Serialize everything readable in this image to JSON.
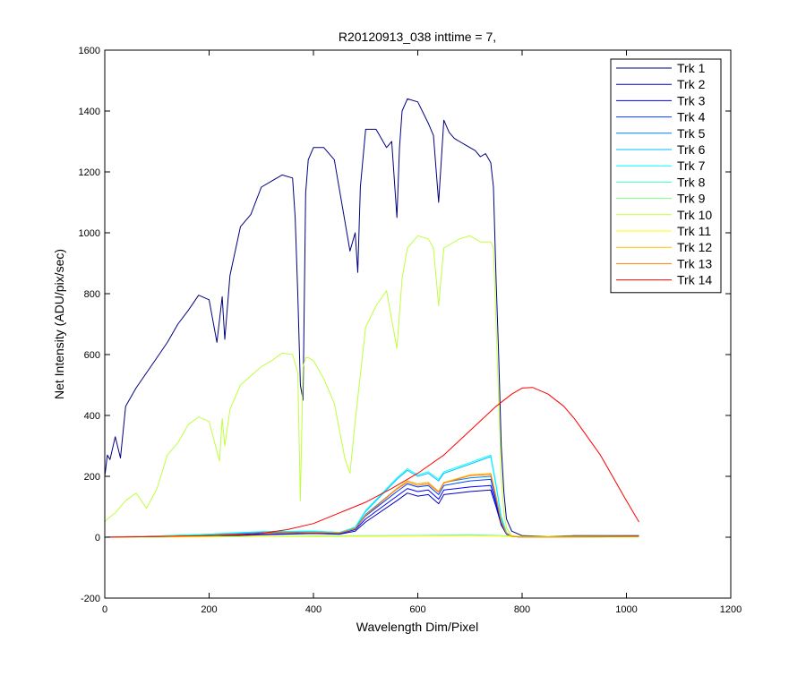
{
  "chart_data": {
    "type": "line",
    "title": "R20120913_038 inttime = 7,",
    "xlabel": "Wavelength Dim/Pixel",
    "ylabel": "Net Intensity (ADU/pix/sec)",
    "xlim": [
      0,
      1200
    ],
    "ylim": [
      -200,
      1600
    ],
    "xticks": [
      0,
      200,
      400,
      600,
      800,
      1000,
      1200
    ],
    "yticks": [
      -200,
      0,
      200,
      400,
      600,
      800,
      1000,
      1200,
      1400,
      1600
    ],
    "grid": false,
    "legend_position": "top-right",
    "series": [
      {
        "name": "Trk 1",
        "color": "#00007f",
        "x": [
          0,
          5,
          10,
          20,
          30,
          40,
          60,
          80,
          100,
          120,
          140,
          160,
          180,
          200,
          215,
          225,
          230,
          240,
          260,
          280,
          300,
          320,
          340,
          360,
          365,
          370,
          375,
          380,
          385,
          390,
          400,
          420,
          440,
          460,
          470,
          480,
          485,
          490,
          500,
          520,
          540,
          550,
          560,
          565,
          570,
          580,
          600,
          620,
          630,
          640,
          650,
          660,
          670,
          680,
          690,
          700,
          710,
          720,
          730,
          740,
          745,
          750,
          755,
          760,
          765,
          770,
          780,
          800,
          850,
          900,
          1000,
          1024
        ],
        "y": [
          200,
          270,
          255,
          330,
          260,
          430,
          490,
          540,
          590,
          640,
          700,
          745,
          795,
          780,
          640,
          790,
          650,
          860,
          1020,
          1060,
          1150,
          1170,
          1190,
          1180,
          1050,
          800,
          500,
          450,
          1130,
          1240,
          1280,
          1280,
          1240,
          1040,
          940,
          1000,
          870,
          1150,
          1340,
          1340,
          1280,
          1300,
          1050,
          1280,
          1400,
          1440,
          1430,
          1360,
          1320,
          1100,
          1370,
          1330,
          1310,
          1300,
          1290,
          1280,
          1270,
          1250,
          1260,
          1230,
          1150,
          850,
          600,
          300,
          150,
          60,
          20,
          5,
          3,
          5,
          5,
          5
        ]
      },
      {
        "name": "Trk 2",
        "color": "#0000bf",
        "x": [
          0,
          100,
          200,
          300,
          400,
          450,
          480,
          500,
          560,
          580,
          600,
          620,
          640,
          650,
          700,
          740,
          750,
          760,
          770,
          780,
          800,
          900,
          1024
        ],
        "y": [
          0,
          1,
          3,
          8,
          12,
          10,
          20,
          50,
          120,
          145,
          135,
          140,
          110,
          140,
          150,
          155,
          100,
          40,
          10,
          3,
          0,
          1,
          2
        ]
      },
      {
        "name": "Trk 3",
        "color": "#0000ff",
        "x": [
          0,
          100,
          200,
          300,
          400,
          450,
          480,
          500,
          560,
          580,
          600,
          620,
          640,
          650,
          700,
          740,
          750,
          760,
          770,
          780,
          800,
          900,
          1024
        ],
        "y": [
          0,
          2,
          5,
          10,
          14,
          12,
          25,
          60,
          135,
          160,
          150,
          155,
          125,
          155,
          165,
          170,
          110,
          45,
          12,
          3,
          0,
          1,
          2
        ]
      },
      {
        "name": "Trk 4",
        "color": "#003fff",
        "x": [
          0,
          100,
          200,
          300,
          400,
          450,
          480,
          500,
          560,
          580,
          600,
          620,
          640,
          650,
          700,
          740,
          750,
          760,
          770,
          780,
          800,
          900,
          1024
        ],
        "y": [
          0,
          2,
          6,
          12,
          16,
          14,
          28,
          70,
          150,
          175,
          165,
          170,
          140,
          170,
          185,
          190,
          120,
          50,
          13,
          3,
          0,
          1,
          2
        ]
      },
      {
        "name": "Trk 5",
        "color": "#007fff",
        "x": [
          0,
          100,
          200,
          300,
          400,
          450,
          480,
          500,
          560,
          580,
          600,
          620,
          640,
          650,
          700,
          740,
          750,
          760,
          770,
          780,
          800,
          900,
          1024
        ],
        "y": [
          0,
          3,
          8,
          15,
          18,
          15,
          30,
          75,
          160,
          185,
          175,
          180,
          150,
          180,
          195,
          200,
          130,
          55,
          14,
          3,
          0,
          1,
          2
        ]
      },
      {
        "name": "Trk 6",
        "color": "#00bfff",
        "x": [
          0,
          100,
          200,
          300,
          400,
          450,
          480,
          500,
          560,
          580,
          600,
          620,
          640,
          650,
          700,
          740,
          750,
          760,
          770,
          780,
          800,
          900,
          1024
        ],
        "y": [
          0,
          4,
          10,
          18,
          20,
          16,
          32,
          85,
          190,
          220,
          200,
          210,
          185,
          210,
          240,
          265,
          170,
          65,
          15,
          3,
          0,
          1,
          2
        ]
      },
      {
        "name": "Trk 7",
        "color": "#00ffff",
        "x": [
          0,
          100,
          200,
          300,
          400,
          450,
          480,
          500,
          560,
          580,
          600,
          620,
          640,
          650,
          700,
          740,
          750,
          760,
          770,
          780,
          800,
          900,
          1024
        ],
        "y": [
          0,
          4,
          10,
          18,
          20,
          16,
          33,
          88,
          195,
          225,
          205,
          215,
          190,
          215,
          245,
          270,
          175,
          68,
          16,
          3,
          0,
          1,
          2
        ]
      },
      {
        "name": "Trk 8",
        "color": "#3fffbf",
        "x": [
          0,
          100,
          200,
          300,
          400,
          500,
          600,
          700,
          750,
          800,
          900,
          1024
        ],
        "y": [
          0,
          1,
          2,
          3,
          4,
          5,
          6,
          8,
          6,
          2,
          1,
          1
        ]
      },
      {
        "name": "Trk 9",
        "color": "#7fff7f",
        "x": [
          0,
          100,
          200,
          300,
          400,
          500,
          600,
          700,
          750,
          800,
          900,
          1024
        ],
        "y": [
          0,
          1,
          2,
          3,
          3,
          4,
          5,
          6,
          5,
          2,
          1,
          1
        ]
      },
      {
        "name": "Trk 10",
        "color": "#bfff3f",
        "x": [
          0,
          5,
          20,
          40,
          60,
          80,
          100,
          120,
          140,
          160,
          180,
          200,
          220,
          225,
          230,
          240,
          260,
          280,
          300,
          320,
          340,
          360,
          370,
          375,
          380,
          385,
          390,
          400,
          420,
          440,
          460,
          470,
          480,
          500,
          520,
          540,
          560,
          570,
          580,
          600,
          620,
          630,
          640,
          650,
          680,
          700,
          720,
          740,
          745,
          750,
          755,
          760,
          765,
          770,
          780,
          800,
          850,
          900,
          1024
        ],
        "y": [
          50,
          60,
          80,
          120,
          145,
          95,
          160,
          270,
          310,
          370,
          395,
          380,
          250,
          390,
          300,
          420,
          500,
          530,
          560,
          580,
          605,
          600,
          540,
          120,
          560,
          590,
          590,
          580,
          520,
          440,
          260,
          210,
          380,
          690,
          760,
          810,
          620,
          850,
          950,
          990,
          980,
          950,
          760,
          950,
          980,
          990,
          970,
          970,
          950,
          700,
          450,
          200,
          80,
          30,
          5,
          2,
          3,
          3,
          3
        ]
      },
      {
        "name": "Trk 11",
        "color": "#ffff00",
        "x": [
          0,
          100,
          200,
          300,
          400,
          500,
          600,
          700,
          750,
          800,
          900,
          1024
        ],
        "y": [
          0,
          1,
          1,
          2,
          2,
          3,
          4,
          5,
          4,
          1,
          1,
          1
        ]
      },
      {
        "name": "Trk 12",
        "color": "#ffbf00",
        "x": [
          0,
          100,
          200,
          300,
          400,
          450,
          480,
          500,
          560,
          580,
          600,
          620,
          640,
          650,
          700,
          740,
          750,
          760,
          770,
          780,
          800,
          900,
          1024
        ],
        "y": [
          0,
          2,
          6,
          12,
          16,
          14,
          28,
          72,
          160,
          185,
          175,
          180,
          150,
          180,
          205,
          210,
          135,
          52,
          13,
          3,
          0,
          1,
          2
        ]
      },
      {
        "name": "Trk 13",
        "color": "#ff7f00",
        "x": [
          0,
          100,
          200,
          300,
          400,
          450,
          480,
          500,
          560,
          580,
          600,
          620,
          640,
          650,
          700,
          740,
          750,
          760,
          770,
          780,
          800,
          900,
          1024
        ],
        "y": [
          0,
          2,
          6,
          12,
          16,
          14,
          28,
          72,
          158,
          180,
          170,
          175,
          148,
          178,
          202,
          206,
          132,
          50,
          13,
          3,
          0,
          1,
          2
        ]
      },
      {
        "name": "Trk 14",
        "color": "#ff0000",
        "x": [
          0,
          100,
          200,
          250,
          300,
          350,
          400,
          450,
          500,
          550,
          600,
          650,
          700,
          750,
          780,
          800,
          820,
          850,
          880,
          900,
          950,
          1000,
          1024
        ],
        "y": [
          0,
          2,
          5,
          8,
          13,
          25,
          45,
          80,
          115,
          160,
          210,
          270,
          350,
          430,
          470,
          490,
          492,
          470,
          430,
          390,
          270,
          120,
          50
        ]
      }
    ]
  }
}
